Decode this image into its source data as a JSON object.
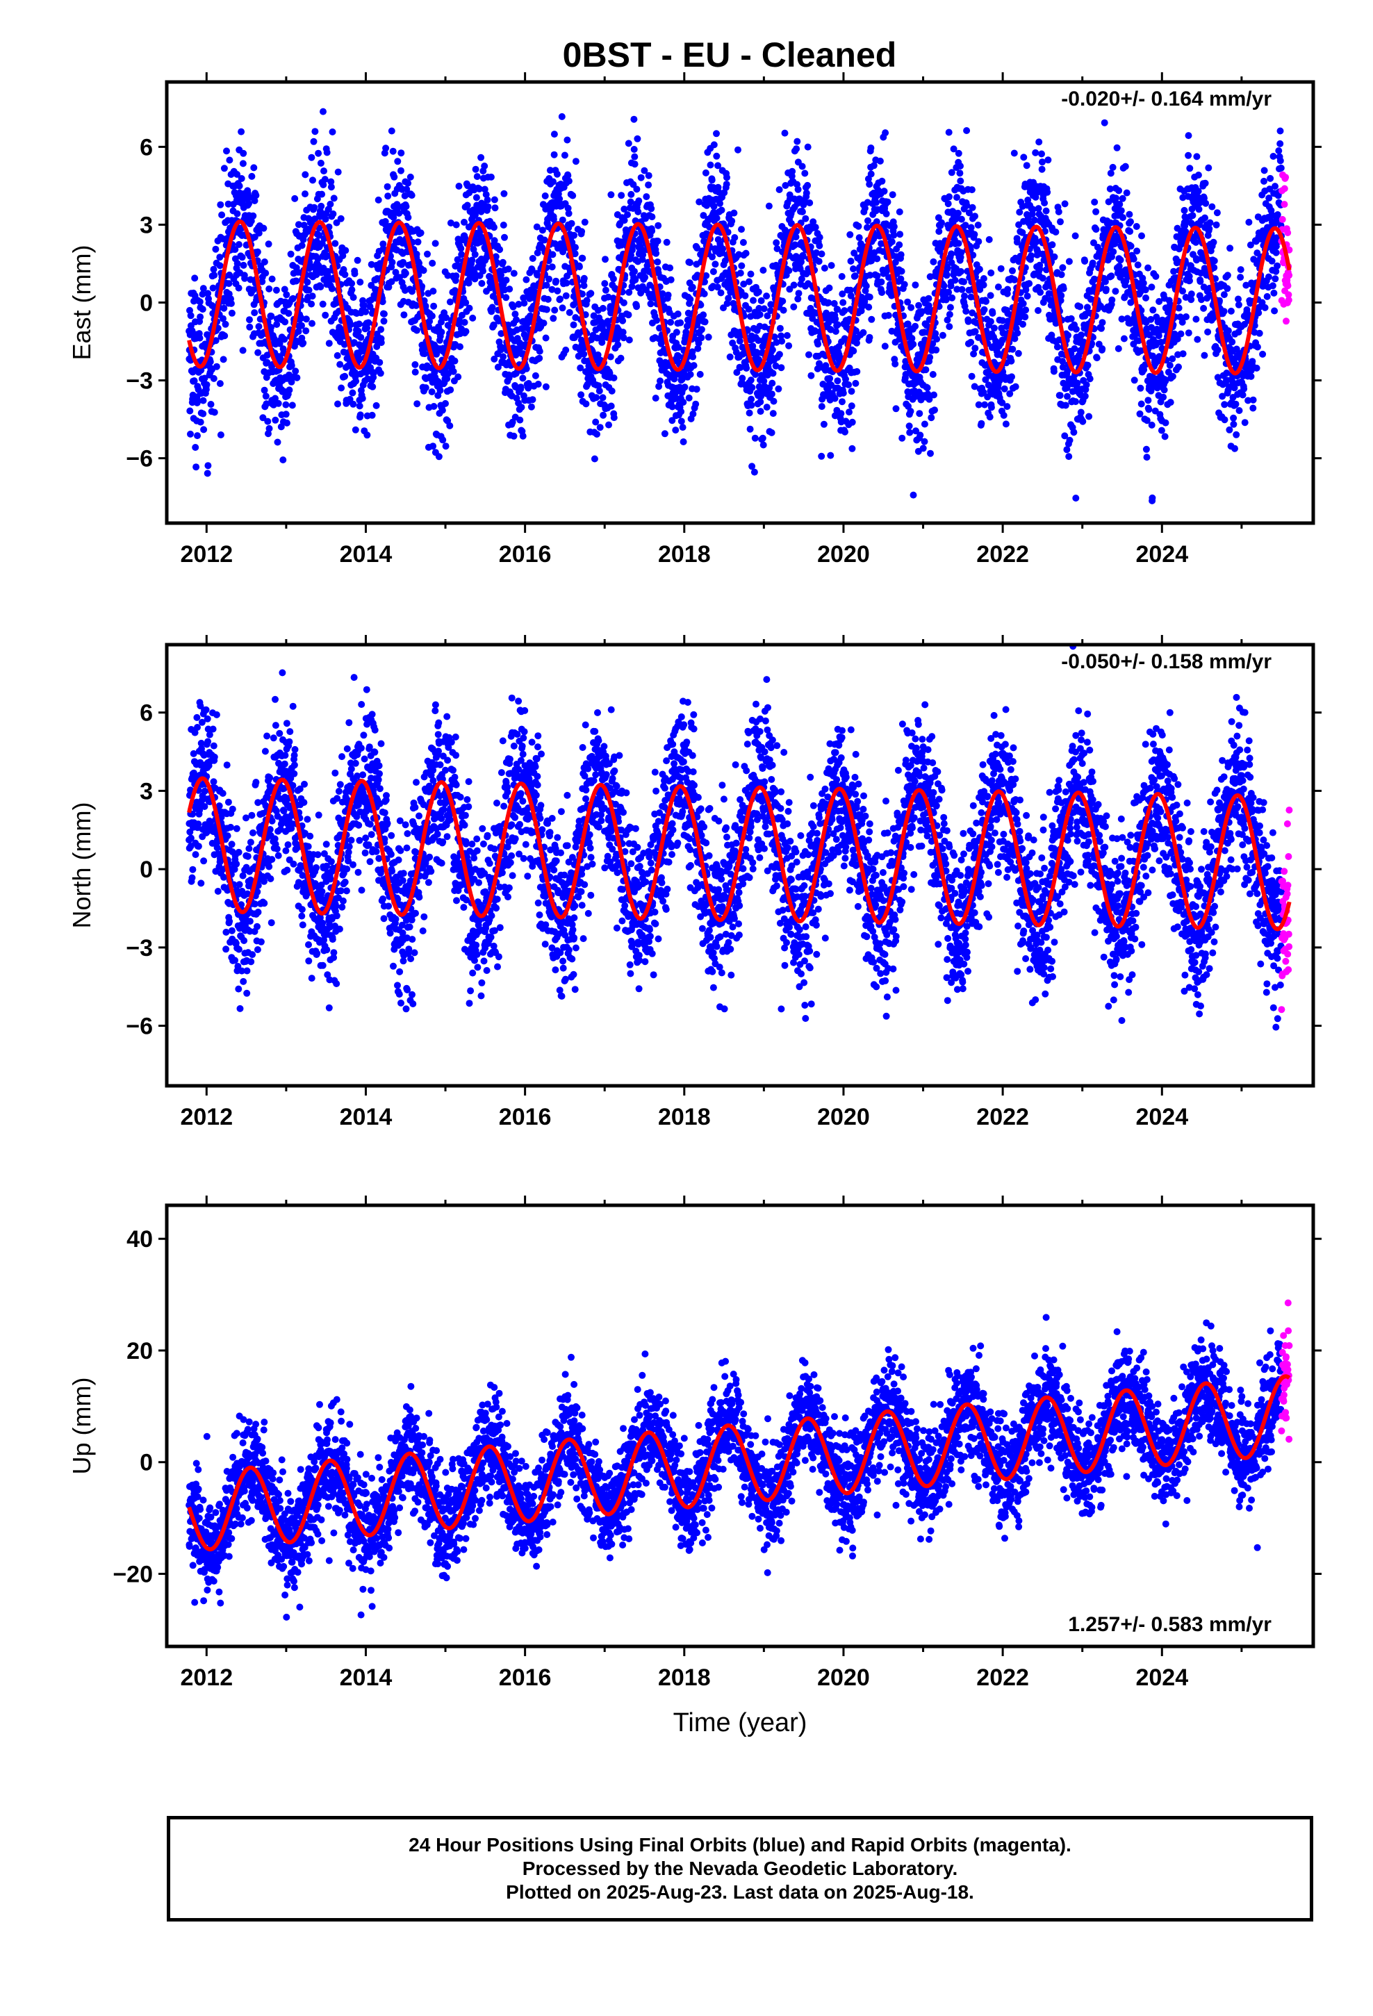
{
  "title": "0BST  - EU - Cleaned",
  "footer": {
    "line1": "24 Hour Positions Using Final Orbits (blue) and Rapid Orbits (magenta).",
    "line2": "Processed by the Nevada Geodetic Laboratory.",
    "line3": "Plotted on 2025-Aug-23. Last data on 2025-Aug-18."
  },
  "colors": {
    "final_orbits": "#0000ff",
    "rapid_orbits": "#ff00ff",
    "model_fit": "#ff0000",
    "axes": "#000000"
  },
  "chart_data": [
    {
      "type": "scatter",
      "panel": "east",
      "ylabel": "East (mm)",
      "rate_label": "-0.020+/- 0.164 mm/yr",
      "xlim": [
        2011.5,
        2025.9
      ],
      "ylim": [
        -8.5,
        8.5
      ],
      "yticks": [
        -6,
        -3,
        0,
        3,
        6
      ],
      "ytick_labels": [
        "−6",
        "−3",
        "0",
        "3",
        "6"
      ],
      "xticks": [
        2012,
        2014,
        2016,
        2018,
        2020,
        2022,
        2024
      ],
      "xtick_labels": [
        "2012",
        "2014",
        "2016",
        "2018",
        "2020",
        "2022",
        "2024"
      ],
      "data_start": 2011.78,
      "data_end": 2025.6,
      "rapid_start": 2025.5,
      "model": {
        "offset": 0.2,
        "trend": -0.02,
        "annual_amp": 2.8,
        "peak_phase": 0.42,
        "trend_ref_year": 2018.5
      },
      "scatter_sd": 1.6,
      "series": [
        {
          "name": "Final Orbits (blue)"
        },
        {
          "name": "Rapid Orbits (magenta)"
        }
      ]
    },
    {
      "type": "scatter",
      "panel": "north",
      "ylabel": "North (mm)",
      "rate_label": "-0.050+/- 0.158 mm/yr",
      "xlim": [
        2011.5,
        2025.9
      ],
      "ylim": [
        -8.3,
        8.6
      ],
      "yticks": [
        -6,
        -3,
        0,
        3,
        6
      ],
      "ytick_labels": [
        "−6",
        "−3",
        "0",
        "3",
        "6"
      ],
      "xticks": [
        2012,
        2014,
        2016,
        2018,
        2020,
        2022,
        2024
      ],
      "xtick_labels": [
        "2012",
        "2014",
        "2016",
        "2018",
        "2020",
        "2022",
        "2024"
      ],
      "data_start": 2011.78,
      "data_end": 2025.6,
      "rapid_start": 2025.5,
      "model": {
        "offset": 0.6,
        "trend": -0.05,
        "annual_amp": 2.55,
        "peak_phase": 0.95,
        "trend_ref_year": 2018.5
      },
      "scatter_sd": 1.5,
      "series": [
        {
          "name": "Final Orbits (blue)"
        },
        {
          "name": "Rapid Orbits (magenta)"
        }
      ]
    },
    {
      "type": "scatter",
      "panel": "up",
      "ylabel": "Up (mm)",
      "xlabel": "Time (year)",
      "rate_label": "1.257+/- 0.583 mm/yr",
      "xlim": [
        2011.5,
        2025.9
      ],
      "ylim": [
        -33,
        46
      ],
      "yticks": [
        -20,
        0,
        20,
        40
      ],
      "ytick_labels": [
        "−20",
        "0",
        "20",
        "40"
      ],
      "xticks": [
        2012,
        2014,
        2016,
        2018,
        2020,
        2022,
        2024
      ],
      "xtick_labels": [
        "2012",
        "2014",
        "2016",
        "2018",
        "2020",
        "2022",
        "2024"
      ],
      "data_start": 2011.78,
      "data_end": 2025.6,
      "rapid_start": 2025.5,
      "model": {
        "offset": -0.5,
        "trend": 1.257,
        "annual_amp": 7.0,
        "peak_phase": 0.55,
        "trend_ref_year": 2018.5
      },
      "scatter_sd": 4.5,
      "series": [
        {
          "name": "Final Orbits (blue)"
        },
        {
          "name": "Rapid Orbits (magenta)"
        }
      ]
    }
  ]
}
